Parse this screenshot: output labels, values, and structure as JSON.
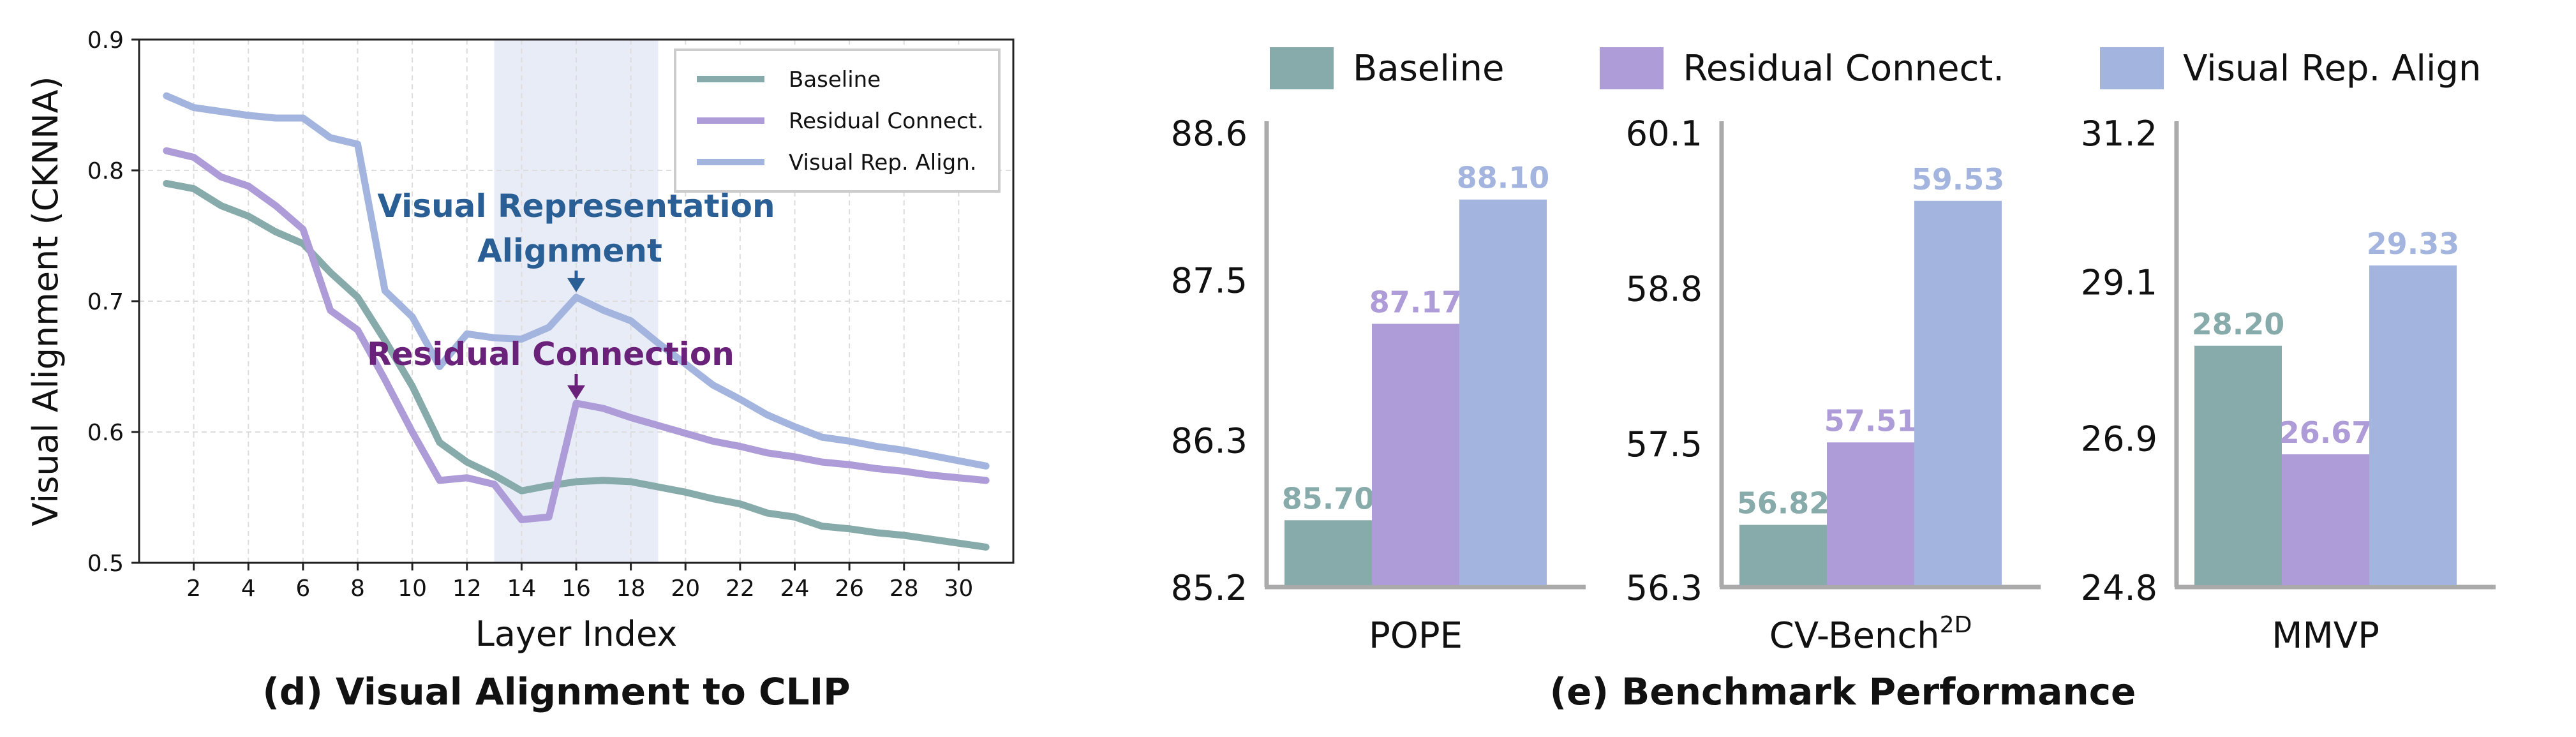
{
  "colors": {
    "baseline": "#87abaa",
    "residual": "#ae9cd9",
    "visual": "#a3b5de",
    "residual_annotation": "#6a2179",
    "visual_annotation": "#2a5f95",
    "highlight": "#e8ecf6",
    "grid": "#dddddd"
  },
  "line_panel": {
    "caption": "(d) Visual Alignment to CLIP"
  },
  "bench_panel": {
    "caption": "(e) Benchmark Performance",
    "legend": [
      "Baseline",
      "Residual Connect.",
      "Visual Rep. Align"
    ]
  },
  "chart_data": [
    {
      "type": "line",
      "xlabel": "Layer Index",
      "ylabel": "Visual Alignment (CKNNA)",
      "xlim": [
        0,
        32
      ],
      "ylim": [
        0.5,
        0.9
      ],
      "xticks": [
        2,
        4,
        6,
        8,
        10,
        12,
        14,
        16,
        18,
        20,
        22,
        24,
        26,
        28,
        30
      ],
      "yticks": [
        0.5,
        0.6,
        0.7,
        0.8,
        0.9
      ],
      "ytick_labels": [
        "0.5",
        "0.6",
        "0.7",
        "0.8",
        "0.9"
      ],
      "grid": true,
      "legend_position": "top-right",
      "highlight_span": [
        13,
        19
      ],
      "x": [
        1,
        2,
        3,
        4,
        5,
        6,
        7,
        8,
        9,
        10,
        11,
        12,
        13,
        14,
        15,
        16,
        17,
        18,
        19,
        20,
        21,
        22,
        23,
        24,
        25,
        26,
        27,
        28,
        29,
        30,
        31
      ],
      "series": [
        {
          "name": "Baseline",
          "color_key": "baseline",
          "values": [
            0.79,
            0.786,
            0.773,
            0.765,
            0.753,
            0.744,
            0.722,
            0.703,
            0.67,
            0.635,
            0.592,
            0.577,
            0.567,
            0.555,
            0.559,
            0.562,
            0.563,
            0.562,
            0.558,
            0.554,
            0.549,
            0.545,
            0.538,
            0.535,
            0.528,
            0.526,
            0.523,
            0.521,
            0.518,
            0.515,
            0.512
          ]
        },
        {
          "name": "Residual Connect.",
          "color_key": "residual",
          "values": [
            0.815,
            0.81,
            0.795,
            0.788,
            0.773,
            0.755,
            0.693,
            0.678,
            0.64,
            0.6,
            0.563,
            0.565,
            0.56,
            0.533,
            0.535,
            0.622,
            0.618,
            0.611,
            0.605,
            0.599,
            0.593,
            0.589,
            0.584,
            0.581,
            0.577,
            0.575,
            0.572,
            0.57,
            0.567,
            0.565,
            0.563
          ]
        },
        {
          "name": "Visual Rep. Align.",
          "color_key": "visual",
          "values": [
            0.857,
            0.848,
            0.845,
            0.842,
            0.84,
            0.84,
            0.825,
            0.82,
            0.708,
            0.688,
            0.65,
            0.675,
            0.672,
            0.671,
            0.68,
            0.703,
            0.693,
            0.685,
            0.668,
            0.652,
            0.636,
            0.625,
            0.613,
            0.604,
            0.596,
            0.593,
            0.589,
            0.586,
            0.582,
            0.578,
            0.574
          ]
        }
      ],
      "annotations": [
        {
          "text_lines": [
            "Visual Representation",
            "Alignment"
          ],
          "x": 16,
          "y": 0.703,
          "color_key": "visual_annotation"
        },
        {
          "text_lines": [
            "Residual Connection"
          ],
          "x": 16,
          "y": 0.622,
          "color_key": "residual_annotation"
        }
      ]
    },
    {
      "type": "bar",
      "title": "POPE",
      "ylim": [
        85.2,
        88.6
      ],
      "yticks": [
        85.2,
        86.3,
        87.5,
        88.6
      ],
      "ytick_labels": [
        "85.2",
        "86.3",
        "87.5",
        "88.6"
      ],
      "categories": [
        "Baseline",
        "Residual Connect.",
        "Visual Rep. Align"
      ],
      "values": [
        85.7,
        87.17,
        88.1
      ],
      "value_labels": [
        "85.70",
        "87.17",
        "88.10"
      ]
    },
    {
      "type": "bar",
      "title": "CV-Bench",
      "title_superscript": "2D",
      "ylim": [
        56.3,
        60.1
      ],
      "yticks": [
        56.3,
        57.5,
        58.8,
        60.1
      ],
      "ytick_labels": [
        "56.3",
        "57.5",
        "58.8",
        "60.1"
      ],
      "categories": [
        "Baseline",
        "Residual Connect.",
        "Visual Rep. Align"
      ],
      "values": [
        56.82,
        57.51,
        59.53
      ],
      "value_labels": [
        "56.82",
        "57.51",
        "59.53"
      ]
    },
    {
      "type": "bar",
      "title": "MMVP",
      "ylim": [
        24.8,
        31.2
      ],
      "yticks": [
        24.8,
        26.9,
        29.1,
        31.2
      ],
      "ytick_labels": [
        "24.8",
        "26.9",
        "29.1",
        "31.2"
      ],
      "categories": [
        "Baseline",
        "Residual Connect.",
        "Visual Rep. Align"
      ],
      "values": [
        28.2,
        26.67,
        29.33
      ],
      "value_labels": [
        "28.20",
        "26.67",
        "29.33"
      ]
    }
  ]
}
